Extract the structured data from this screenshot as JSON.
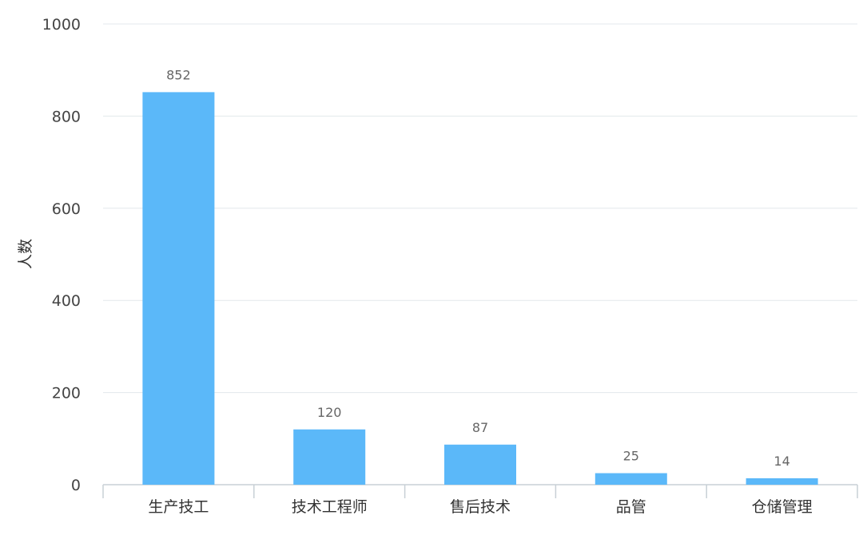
{
  "chart_data": {
    "type": "bar",
    "categories": [
      "生产技工",
      "技术工程师",
      "售后技术",
      "品管",
      "仓储管理"
    ],
    "values": [
      852,
      120,
      87,
      25,
      14
    ],
    "title": "",
    "xlabel": "",
    "ylabel": "人数",
    "ylim": [
      0,
      1000
    ],
    "yticks": [
      "0",
      "200",
      "400",
      "600",
      "800",
      "1000"
    ],
    "data_labels": [
      "852",
      "120",
      "87",
      "25",
      "14"
    ],
    "grid": true,
    "bar_color": "#5bb8f9"
  }
}
